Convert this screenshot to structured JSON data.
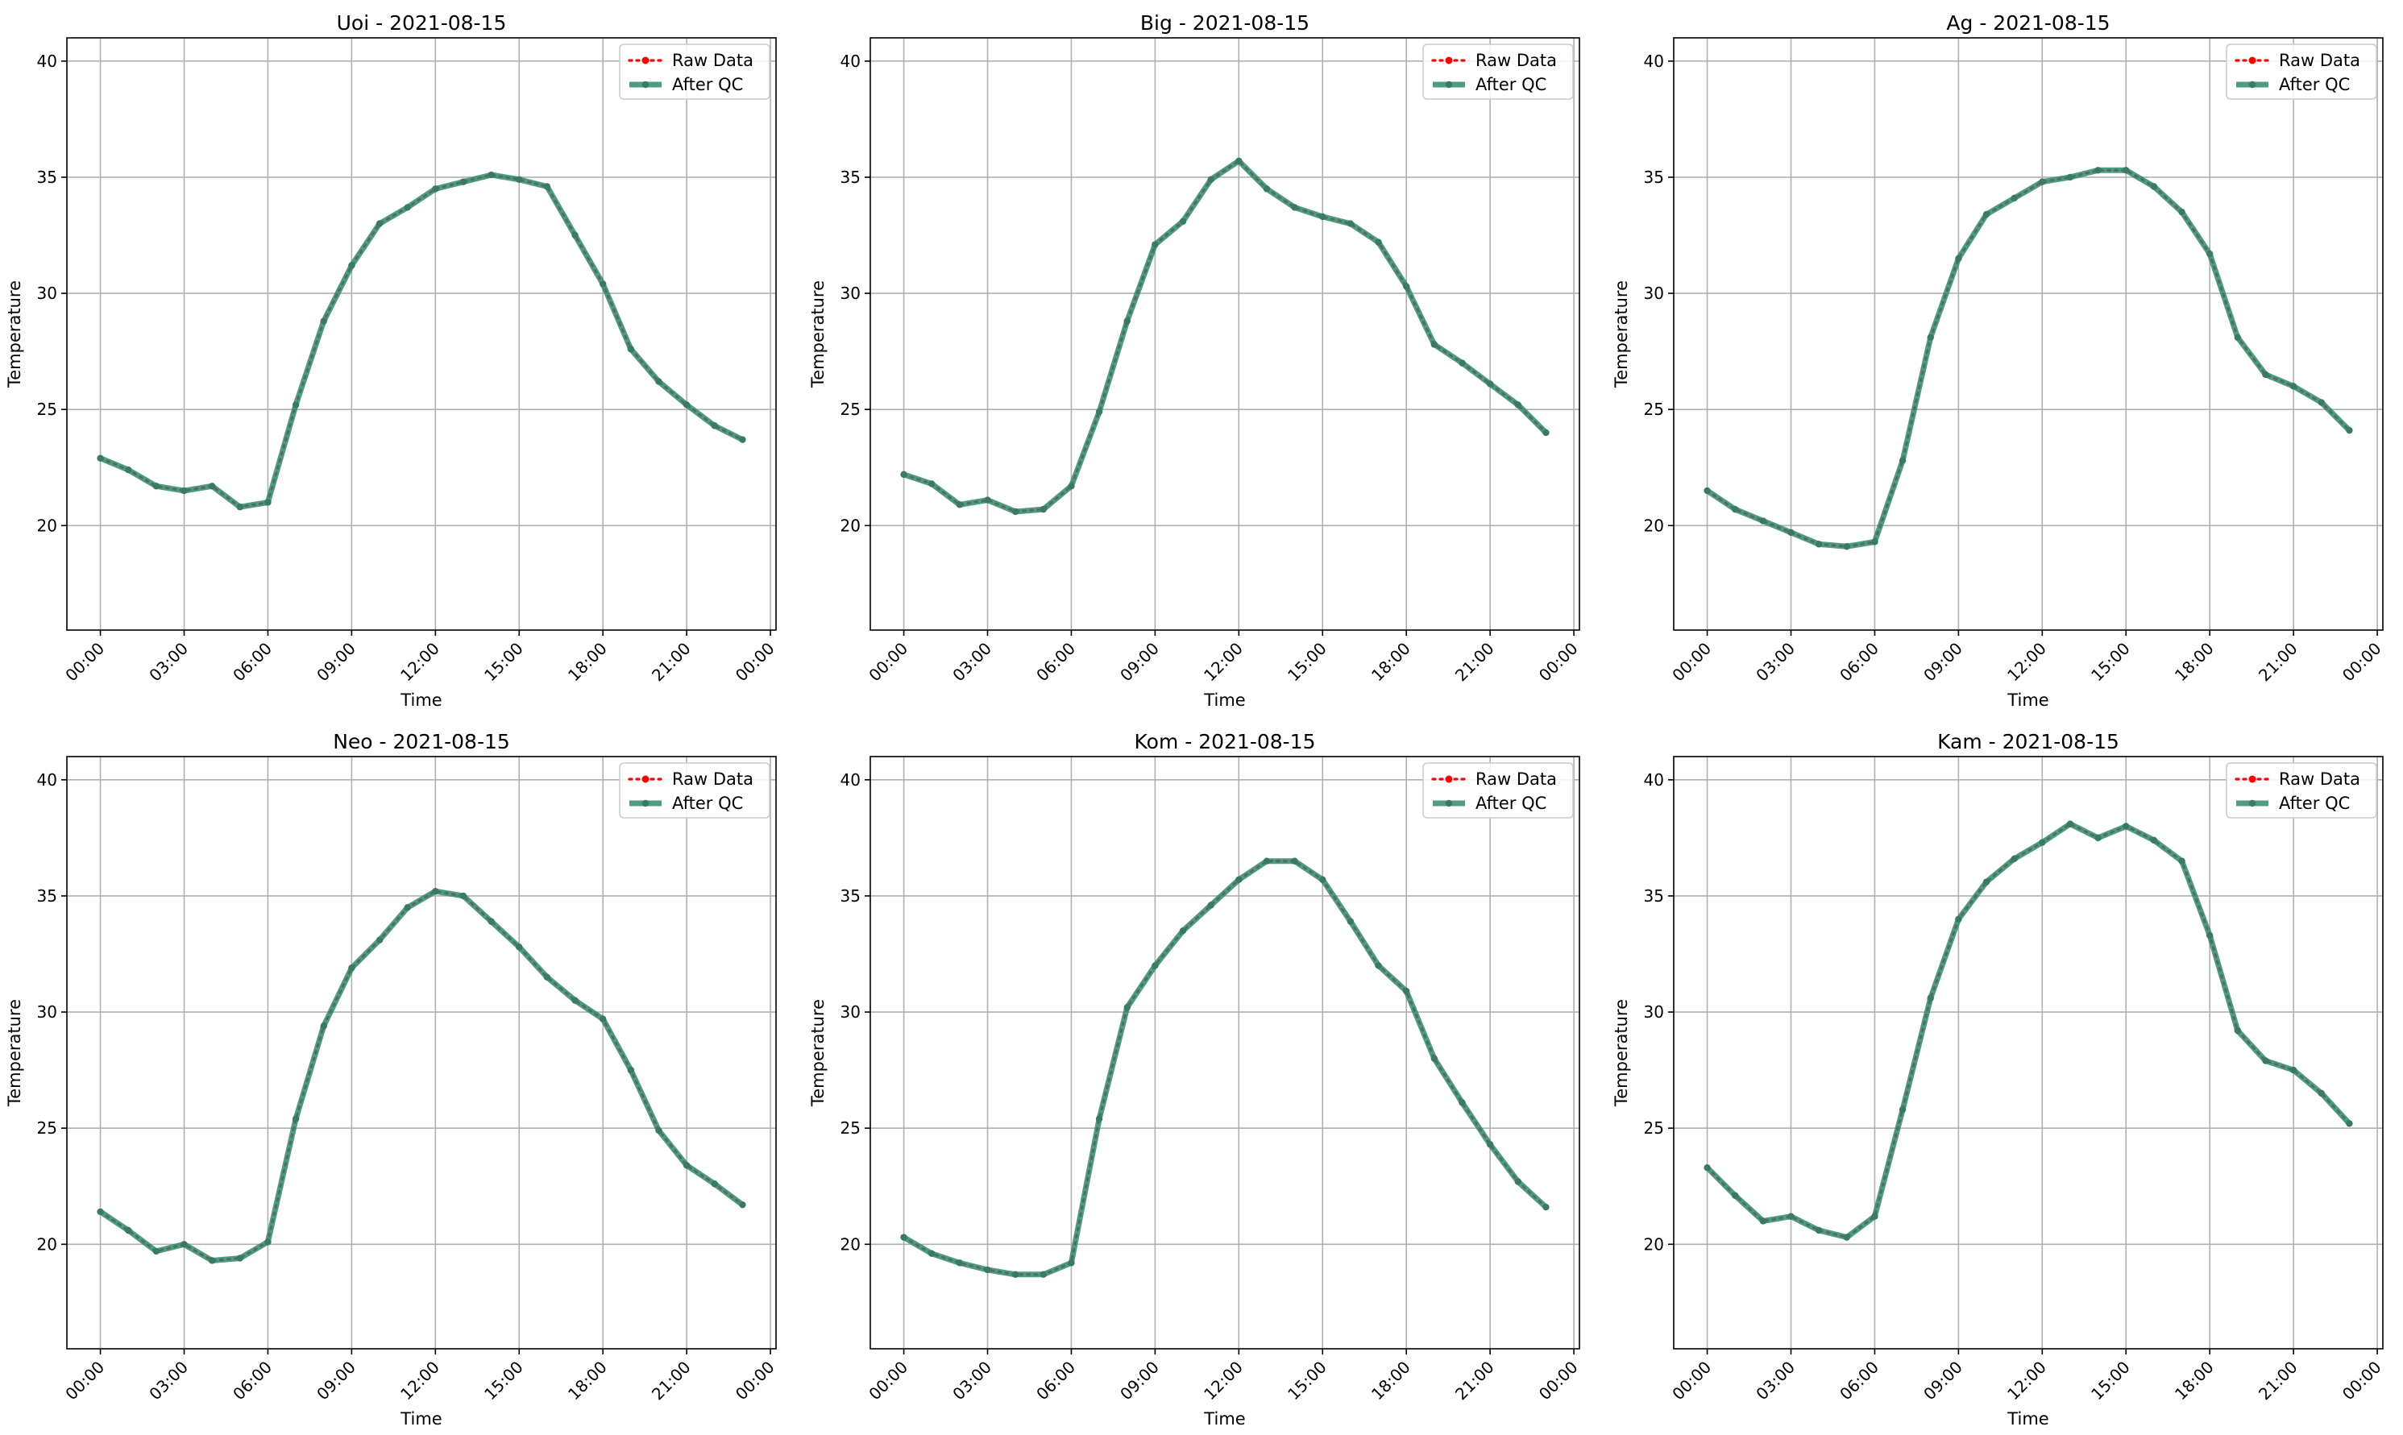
{
  "chart_data": [
    {
      "type": "line",
      "title": "Uoi - 2021-08-15",
      "xlabel": "Time",
      "ylabel": "Temperature",
      "xticks": [
        "00:00",
        "03:00",
        "06:00",
        "09:00",
        "12:00",
        "15:00",
        "18:00",
        "21:00",
        "00:00"
      ],
      "xlim": [
        -1.2,
        24.2
      ],
      "ylim": [
        15.5,
        41
      ],
      "yticks": [
        20,
        25,
        30,
        35,
        40
      ],
      "grid": true,
      "legend": "top-right",
      "x": [
        0,
        1,
        2,
        3,
        4,
        5,
        6,
        7,
        8,
        9,
        10,
        11,
        12,
        13,
        14,
        15,
        16,
        17,
        18,
        19,
        20,
        21,
        22,
        23
      ],
      "series": [
        {
          "name": "Raw Data",
          "color": "#ff0000",
          "values": [
            22.9,
            22.4,
            21.7,
            21.5,
            21.7,
            20.8,
            21.0,
            25.2,
            28.8,
            31.2,
            33.0,
            33.7,
            34.5,
            34.8,
            35.1,
            34.9,
            34.6,
            32.5,
            30.4,
            27.6,
            26.2,
            25.2,
            24.3,
            23.7
          ]
        },
        {
          "name": "After QC",
          "color": "#2e8b6e",
          "values": [
            22.9,
            22.4,
            21.7,
            21.5,
            21.7,
            20.8,
            21.0,
            25.2,
            28.8,
            31.2,
            33.0,
            33.7,
            34.5,
            34.8,
            35.1,
            34.9,
            34.6,
            32.5,
            30.4,
            27.6,
            26.2,
            25.2,
            24.3,
            23.7
          ]
        }
      ]
    },
    {
      "type": "line",
      "title": "Big - 2021-08-15",
      "xlabel": "Time",
      "ylabel": "Temperature",
      "xticks": [
        "00:00",
        "03:00",
        "06:00",
        "09:00",
        "12:00",
        "15:00",
        "18:00",
        "21:00",
        "00:00"
      ],
      "xlim": [
        -1.2,
        24.2
      ],
      "ylim": [
        15.5,
        41
      ],
      "yticks": [
        20,
        25,
        30,
        35,
        40
      ],
      "grid": true,
      "legend": "top-right",
      "x": [
        0,
        1,
        2,
        3,
        4,
        5,
        6,
        7,
        8,
        9,
        10,
        11,
        12,
        13,
        14,
        15,
        16,
        17,
        18,
        19,
        20,
        21,
        22,
        23
      ],
      "series": [
        {
          "name": "Raw Data",
          "color": "#ff0000",
          "values": [
            22.2,
            21.8,
            20.9,
            21.1,
            20.6,
            20.7,
            21.7,
            24.9,
            28.8,
            32.1,
            33.1,
            34.9,
            35.7,
            34.5,
            33.7,
            33.3,
            33.0,
            32.2,
            30.3,
            27.8,
            27.0,
            26.1,
            25.2,
            24.0
          ]
        },
        {
          "name": "After QC",
          "color": "#2e8b6e",
          "values": [
            22.2,
            21.8,
            20.9,
            21.1,
            20.6,
            20.7,
            21.7,
            24.9,
            28.8,
            32.1,
            33.1,
            34.9,
            35.7,
            34.5,
            33.7,
            33.3,
            33.0,
            32.2,
            30.3,
            27.8,
            27.0,
            26.1,
            25.2,
            24.0
          ]
        }
      ]
    },
    {
      "type": "line",
      "title": "Ag - 2021-08-15",
      "xlabel": "Time",
      "ylabel": "Temperature",
      "xticks": [
        "00:00",
        "03:00",
        "06:00",
        "09:00",
        "12:00",
        "15:00",
        "18:00",
        "21:00",
        "00:00"
      ],
      "xlim": [
        -1.2,
        24.2
      ],
      "ylim": [
        15.5,
        41
      ],
      "yticks": [
        20,
        25,
        30,
        35,
        40
      ],
      "grid": true,
      "legend": "top-right",
      "x": [
        0,
        1,
        2,
        3,
        4,
        5,
        6,
        7,
        8,
        9,
        10,
        11,
        12,
        13,
        14,
        15,
        16,
        17,
        18,
        19,
        20,
        21,
        22,
        23
      ],
      "series": [
        {
          "name": "Raw Data",
          "color": "#ff0000",
          "values": [
            21.5,
            20.7,
            20.2,
            19.7,
            19.2,
            19.1,
            19.3,
            22.8,
            28.1,
            31.5,
            33.4,
            34.1,
            34.8,
            35.0,
            35.3,
            35.3,
            34.6,
            33.5,
            31.7,
            28.1,
            26.5,
            26.0,
            25.3,
            24.1
          ]
        },
        {
          "name": "After QC",
          "color": "#2e8b6e",
          "values": [
            21.5,
            20.7,
            20.2,
            19.7,
            19.2,
            19.1,
            19.3,
            22.8,
            28.1,
            31.5,
            33.4,
            34.1,
            34.8,
            35.0,
            35.3,
            35.3,
            34.6,
            33.5,
            31.7,
            28.1,
            26.5,
            26.0,
            25.3,
            24.1
          ]
        }
      ]
    },
    {
      "type": "line",
      "title": "Neo - 2021-08-15",
      "xlabel": "Time",
      "ylabel": "Temperature",
      "xticks": [
        "00:00",
        "03:00",
        "06:00",
        "09:00",
        "12:00",
        "15:00",
        "18:00",
        "21:00",
        "00:00"
      ],
      "xlim": [
        -1.2,
        24.2
      ],
      "ylim": [
        15.5,
        41
      ],
      "yticks": [
        20,
        25,
        30,
        35,
        40
      ],
      "grid": true,
      "legend": "top-right",
      "x": [
        0,
        1,
        2,
        3,
        4,
        5,
        6,
        7,
        8,
        9,
        10,
        11,
        12,
        13,
        14,
        15,
        16,
        17,
        18,
        19,
        20,
        21,
        22,
        23
      ],
      "series": [
        {
          "name": "Raw Data",
          "color": "#ff0000",
          "values": [
            21.4,
            20.6,
            19.7,
            20.0,
            19.3,
            19.4,
            20.1,
            25.4,
            29.4,
            31.9,
            33.1,
            34.5,
            35.2,
            35.0,
            33.9,
            32.8,
            31.5,
            30.5,
            29.7,
            27.5,
            24.9,
            23.4,
            22.6,
            21.7
          ]
        },
        {
          "name": "After QC",
          "color": "#2e8b6e",
          "values": [
            21.4,
            20.6,
            19.7,
            20.0,
            19.3,
            19.4,
            20.1,
            25.4,
            29.4,
            31.9,
            33.1,
            34.5,
            35.2,
            35.0,
            33.9,
            32.8,
            31.5,
            30.5,
            29.7,
            27.5,
            24.9,
            23.4,
            22.6,
            21.7
          ]
        }
      ]
    },
    {
      "type": "line",
      "title": "Kom - 2021-08-15",
      "xlabel": "Time",
      "ylabel": "Temperature",
      "xticks": [
        "00:00",
        "03:00",
        "06:00",
        "09:00",
        "12:00",
        "15:00",
        "18:00",
        "21:00",
        "00:00"
      ],
      "xlim": [
        -1.2,
        24.2
      ],
      "ylim": [
        15.5,
        41
      ],
      "yticks": [
        20,
        25,
        30,
        35,
        40
      ],
      "grid": true,
      "legend": "top-right",
      "x": [
        0,
        1,
        2,
        3,
        4,
        5,
        6,
        7,
        8,
        9,
        10,
        11,
        12,
        13,
        14,
        15,
        16,
        17,
        18,
        19,
        20,
        21,
        22,
        23
      ],
      "series": [
        {
          "name": "Raw Data",
          "color": "#ff0000",
          "values": [
            20.3,
            19.6,
            19.2,
            18.9,
            18.7,
            18.7,
            19.2,
            25.4,
            30.2,
            32.0,
            33.5,
            34.6,
            35.7,
            36.5,
            36.5,
            35.7,
            33.9,
            32.0,
            30.9,
            28.0,
            26.1,
            24.3,
            22.7,
            21.6
          ]
        },
        {
          "name": "After QC",
          "color": "#2e8b6e",
          "values": [
            20.3,
            19.6,
            19.2,
            18.9,
            18.7,
            18.7,
            19.2,
            25.4,
            30.2,
            32.0,
            33.5,
            34.6,
            35.7,
            36.5,
            36.5,
            35.7,
            33.9,
            32.0,
            30.9,
            28.0,
            26.1,
            24.3,
            22.7,
            21.6
          ]
        }
      ]
    },
    {
      "type": "line",
      "title": "Kam - 2021-08-15",
      "xlabel": "Time",
      "ylabel": "Temperature",
      "xticks": [
        "00:00",
        "03:00",
        "06:00",
        "09:00",
        "12:00",
        "15:00",
        "18:00",
        "21:00",
        "00:00"
      ],
      "xlim": [
        -1.2,
        24.2
      ],
      "ylim": [
        15.5,
        41
      ],
      "yticks": [
        20,
        25,
        30,
        35,
        40
      ],
      "grid": true,
      "legend": "top-right",
      "x": [
        0,
        1,
        2,
        3,
        4,
        5,
        6,
        7,
        8,
        9,
        10,
        11,
        12,
        13,
        14,
        15,
        16,
        17,
        18,
        19,
        20,
        21,
        22,
        23
      ],
      "series": [
        {
          "name": "Raw Data",
          "color": "#ff0000",
          "values": [
            23.3,
            22.1,
            21.0,
            21.2,
            20.6,
            20.3,
            21.2,
            25.8,
            30.6,
            34.0,
            35.6,
            36.6,
            37.3,
            38.1,
            37.5,
            38.0,
            37.4,
            36.5,
            33.3,
            29.2,
            27.9,
            27.5,
            26.5,
            25.2
          ]
        },
        {
          "name": "After QC",
          "color": "#2e8b6e",
          "values": [
            23.3,
            22.1,
            21.0,
            21.2,
            20.6,
            20.3,
            21.2,
            25.8,
            30.6,
            34.0,
            35.6,
            36.6,
            37.3,
            38.1,
            37.5,
            38.0,
            37.4,
            36.5,
            33.3,
            29.2,
            27.9,
            27.5,
            26.5,
            25.2
          ]
        }
      ]
    }
  ]
}
